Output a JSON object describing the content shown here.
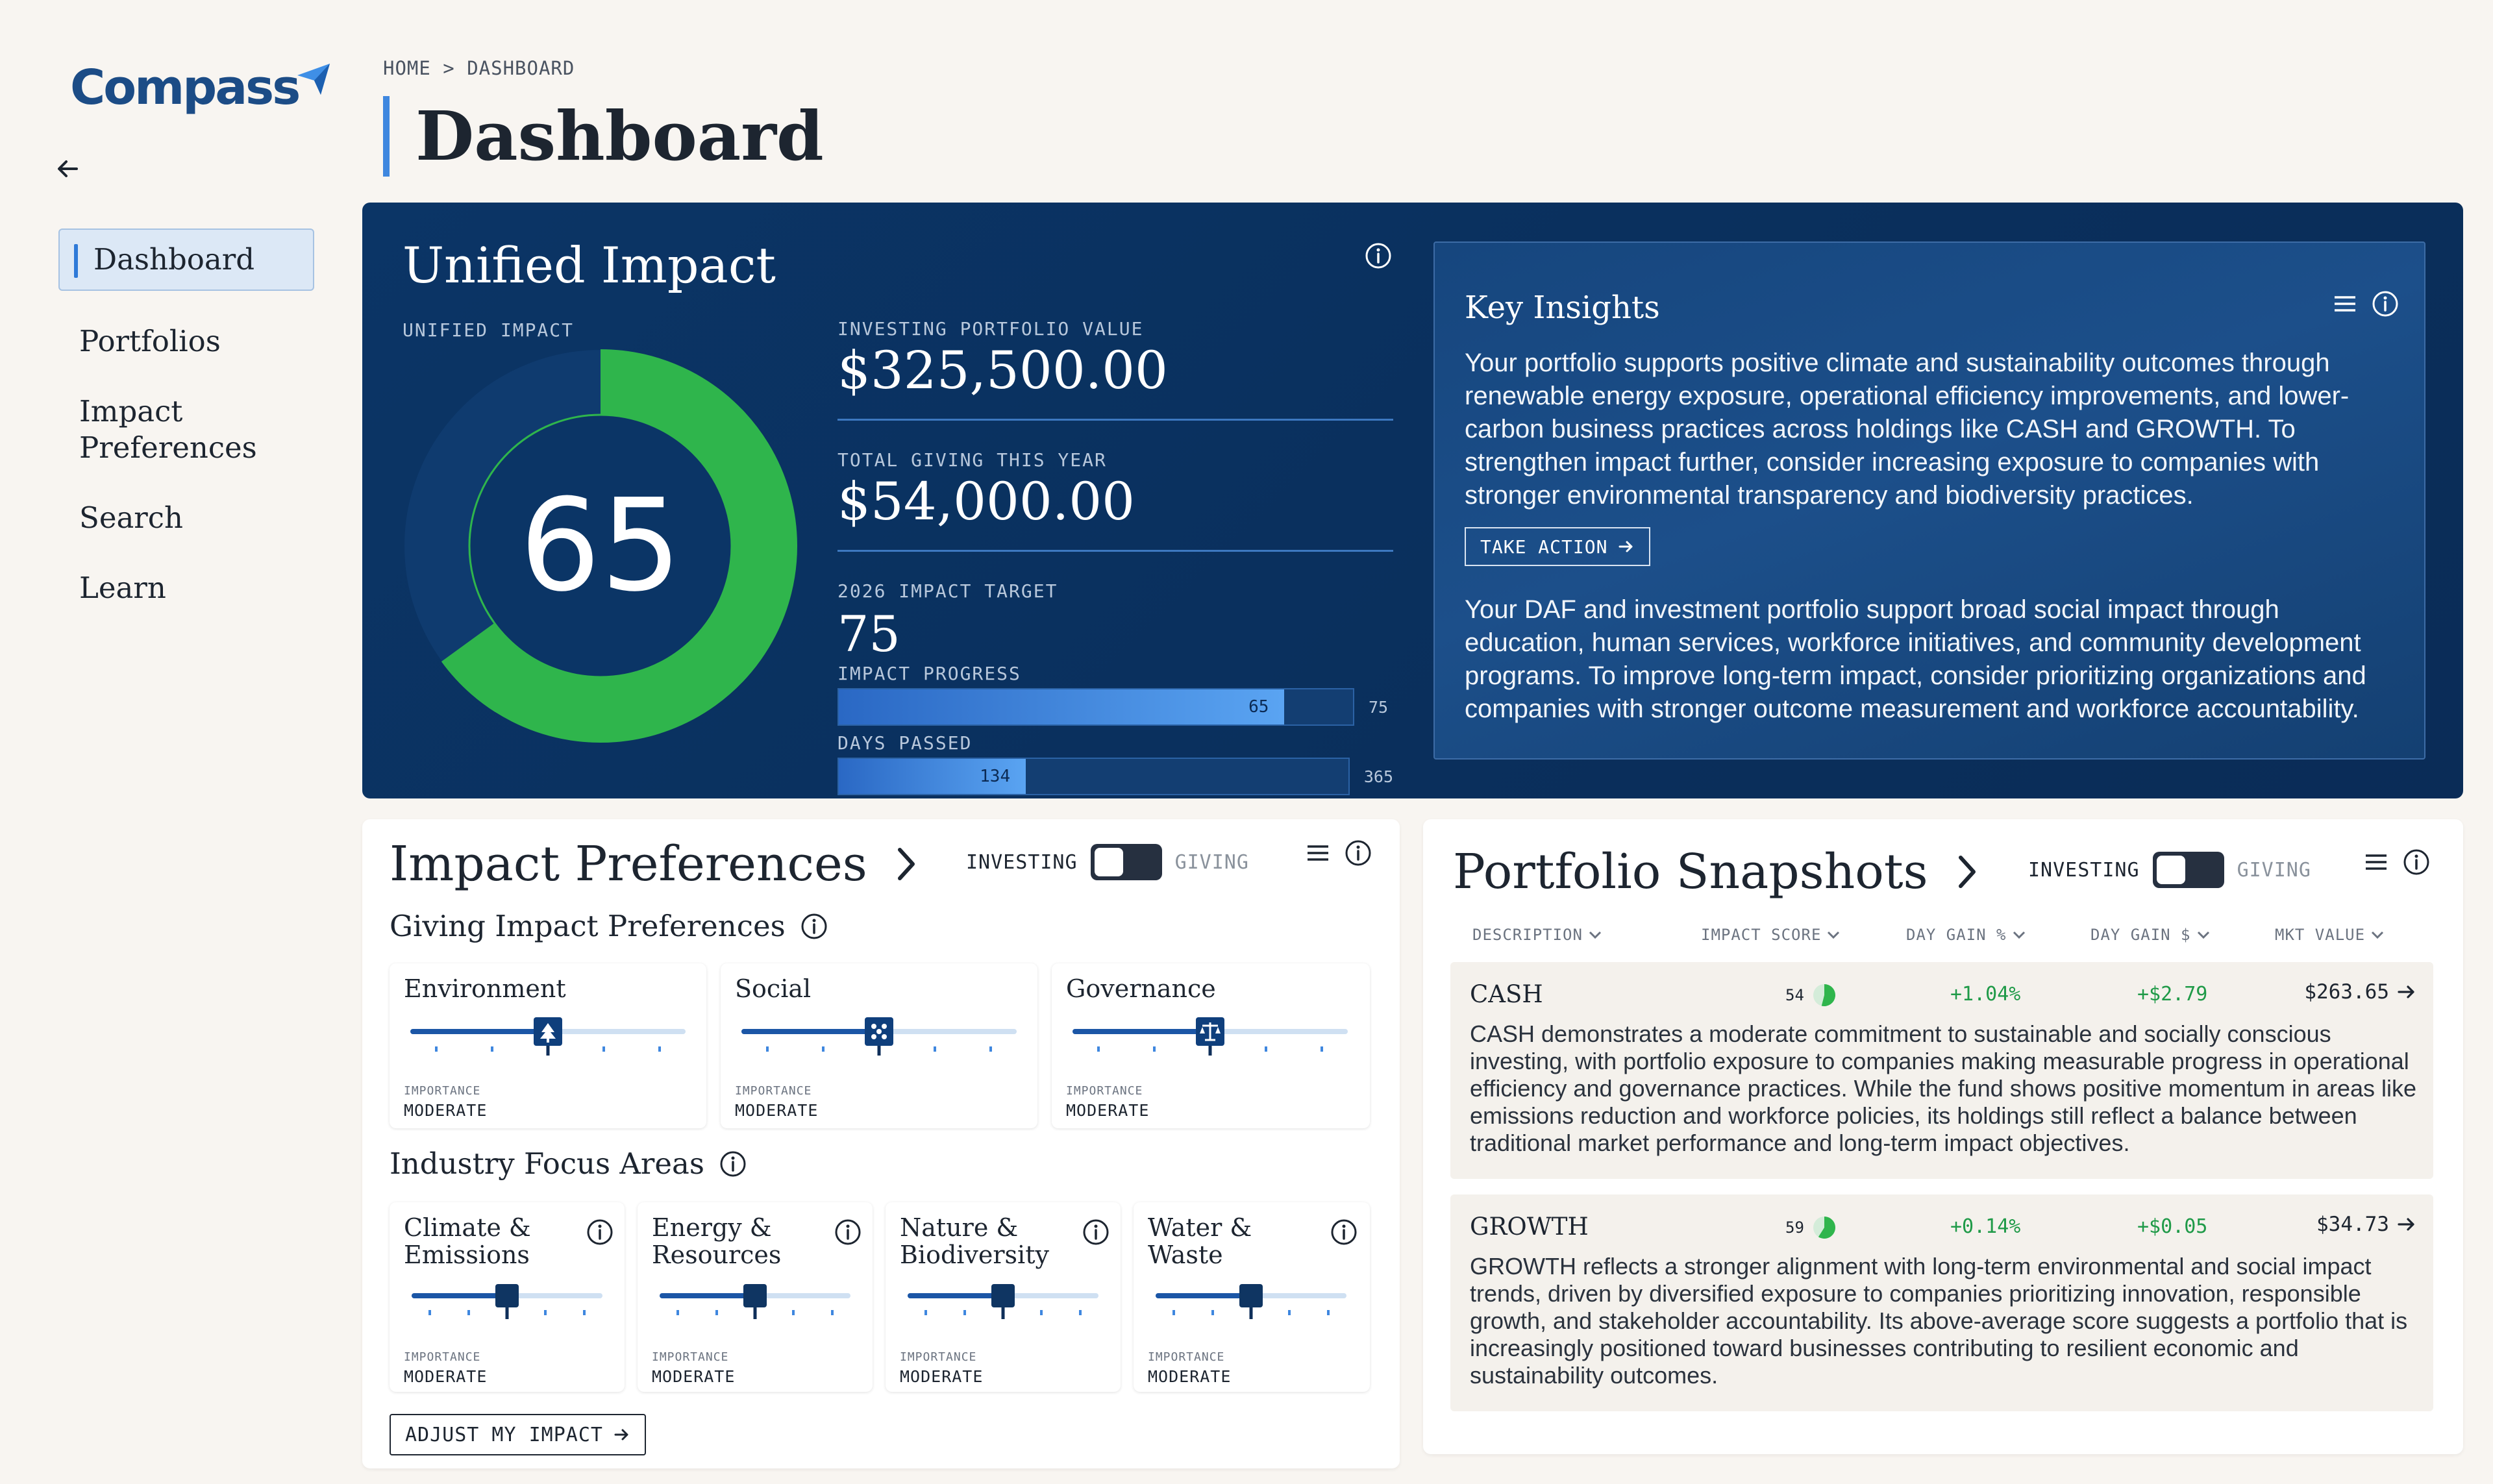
{
  "app": {
    "logo_text": "Compass"
  },
  "sidebar": {
    "items": [
      {
        "label": "Dashboard",
        "active": true
      },
      {
        "label": "Portfolios"
      },
      {
        "label": "Impact Preferences"
      },
      {
        "label": "Search"
      },
      {
        "label": "Learn"
      }
    ]
  },
  "header": {
    "breadcrumb": "HOME > DASHBOARD",
    "title": "Dashboard"
  },
  "unified": {
    "title": "Unified Impact",
    "score_label": "UNIFIED IMPACT",
    "score": "65",
    "score_value": 65,
    "score_max": 100,
    "investing_label": "INVESTING PORTFOLIO VALUE",
    "investing_value": "$325,500.00",
    "giving_label": "TOTAL GIVING THIS YEAR",
    "giving_value": "$54,000.00",
    "target_label": "2026 IMPACT TARGET",
    "target_value": "75",
    "progress_label": "IMPACT PROGRESS",
    "progress_value": "65",
    "progress_max": "75",
    "days_label": "DAYS PASSED",
    "days_value": "134",
    "days_max": "365",
    "colors": {
      "accent_green": "#2fb54c",
      "panel": "#0b3566"
    }
  },
  "insights": {
    "title": "Key Insights",
    "paragraph_1": "Your portfolio supports positive climate and sustainability outcomes through renewable energy exposure, operational efficiency improvements, and lower-carbon business practices across holdings like CASH and GROWTH. To strengthen impact further, consider increasing exposure to companies with stronger environmental transparency and biodiversity practices.",
    "action_label": "TAKE ACTION",
    "paragraph_2": "Your DAF and investment portfolio support broad social impact through education, human services, workforce initiatives, and community development programs. To improve long-term impact, consider prioritizing organizations and companies with stronger outcome measurement and workforce accountability."
  },
  "preferences": {
    "title": "Impact Preferences",
    "toggle_on": "INVESTING",
    "toggle_off": "GIVING",
    "giving_title": "Giving Impact Preferences",
    "giving": [
      {
        "label": "Environment",
        "importance_label": "IMPORTANCE",
        "importance": "MODERATE",
        "level": 0.5,
        "icon": "tree-icon"
      },
      {
        "label": "Social",
        "importance_label": "IMPORTANCE",
        "importance": "MODERATE",
        "level": 0.5,
        "icon": "people-icon"
      },
      {
        "label": "Governance",
        "importance_label": "IMPORTANCE",
        "importance": "MODERATE",
        "level": 0.5,
        "icon": "scales-icon"
      }
    ],
    "industry_title": "Industry Focus Areas",
    "industry": [
      {
        "line1": "Climate &",
        "line2": "Emissions",
        "importance_label": "IMPORTANCE",
        "importance": "MODERATE",
        "level": 0.5
      },
      {
        "line1": "Energy &",
        "line2": "Resources",
        "importance_label": "IMPORTANCE",
        "importance": "MODERATE",
        "level": 0.5
      },
      {
        "line1": "Nature &",
        "line2": "Biodiversity",
        "importance_label": "IMPORTANCE",
        "importance": "MODERATE",
        "level": 0.5
      },
      {
        "line1": "Water &",
        "line2": "Waste",
        "importance_label": "IMPORTANCE",
        "importance": "MODERATE",
        "level": 0.5
      }
    ],
    "adjust_label": "ADJUST MY IMPACT"
  },
  "snapshots": {
    "title": "Portfolio Snapshots",
    "toggle_on": "INVESTING",
    "toggle_off": "GIVING",
    "columns": [
      "DESCRIPTION",
      "IMPACT SCORE",
      "DAY GAIN %",
      "DAY GAIN $",
      "MKT VALUE"
    ],
    "rows": [
      {
        "name": "CASH",
        "score": "54",
        "score_value": 54,
        "day_gain_pct": "+1.04%",
        "day_gain_usd": "+$2.79",
        "mkt_value": "$263.65",
        "description": "CASH demonstrates a moderate commitment to sustainable and socially conscious investing, with portfolio exposure to companies making measurable progress in operational efficiency and governance practices. While the fund shows positive momentum in areas like emissions reduction and workforce policies, its holdings still reflect a balance between traditional market performance and long-term impact objectives."
      },
      {
        "name": "GROWTH",
        "score": "59",
        "score_value": 59,
        "day_gain_pct": "+0.14%",
        "day_gain_usd": "+$0.05",
        "mkt_value": "$34.73",
        "description": "GROWTH reflects a stronger alignment with long-term environmental and social impact trends, driven by diversified exposure to companies prioritizing innovation, responsible growth, and stakeholder accountability. Its above-average score suggests a portfolio that is increasingly positioned toward businesses contributing to resilient economic and sustainability outcomes."
      }
    ]
  }
}
